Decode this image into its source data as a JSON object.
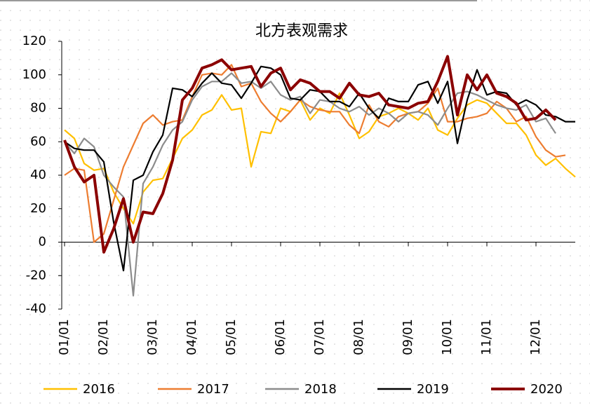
{
  "chart_data": {
    "type": "line",
    "title": "北方表观需求",
    "categories": [
      "01/01",
      null,
      null,
      null,
      "02/01",
      null,
      null,
      null,
      null,
      "03/01",
      null,
      null,
      null,
      "04/01",
      null,
      null,
      null,
      "05/01",
      null,
      null,
      null,
      null,
      "06/01",
      null,
      null,
      null,
      "07/01",
      null,
      null,
      null,
      "08/01",
      null,
      null,
      null,
      null,
      "09/01",
      null,
      null,
      null,
      "10/01",
      null,
      null,
      null,
      "11/01",
      null,
      null,
      null,
      null,
      "12/01",
      null,
      null,
      null,
      null
    ],
    "ylim": [
      -40,
      120
    ],
    "yticks": [
      -40,
      -20,
      0,
      20,
      40,
      60,
      80,
      100,
      120
    ],
    "series": [
      {
        "name": "2016",
        "color": "#ffc000",
        "values": [
          67,
          62,
          47,
          43,
          44,
          30,
          20,
          11,
          30,
          37,
          38,
          50,
          62,
          67,
          76,
          79,
          88,
          79,
          80,
          45,
          66,
          65,
          80,
          78,
          85,
          73,
          80,
          77,
          89,
          76,
          62,
          66,
          75,
          77,
          80,
          77,
          73,
          80,
          67,
          64,
          74,
          82,
          85,
          83,
          77,
          71,
          71,
          64,
          52,
          46,
          50,
          44,
          39
        ]
      },
      {
        "name": "2017",
        "color": "#ed7d31",
        "values": [
          40,
          44,
          43,
          0,
          5,
          25,
          45,
          58,
          71,
          76,
          70,
          72,
          73,
          87,
          100,
          101,
          100,
          106,
          93,
          95,
          84,
          77,
          72,
          78,
          85,
          81,
          79,
          78,
          78,
          70,
          65,
          82,
          72,
          69,
          75,
          77,
          78,
          83,
          92,
          72,
          72,
          74,
          75,
          77,
          84,
          80,
          72,
          75,
          63,
          55,
          51,
          52,
          null
        ]
      },
      {
        "name": "2018",
        "color": "#8c8c8c",
        "values": [
          60,
          53,
          62,
          57,
          40,
          33,
          27,
          -32,
          35,
          45,
          58,
          67,
          72,
          85,
          93,
          96,
          96,
          101,
          95,
          96,
          92,
          96,
          88,
          85,
          87,
          77,
          85,
          84,
          80,
          78,
          81,
          76,
          80,
          77,
          72,
          77,
          78,
          76,
          70,
          80,
          89,
          90,
          88,
          85,
          82,
          80,
          79,
          82,
          72,
          74,
          65,
          null,
          null
        ]
      },
      {
        "name": "2019",
        "color": "#000000",
        "values": [
          60,
          56,
          55,
          55,
          48,
          12,
          -17,
          37,
          40,
          54,
          64,
          92,
          91,
          87,
          95,
          101,
          95,
          94,
          86,
          95,
          105,
          104,
          100,
          86,
          85,
          91,
          90,
          84,
          84,
          81,
          89,
          80,
          74,
          86,
          84,
          84,
          94,
          96,
          83,
          96,
          59,
          85,
          103,
          88,
          90,
          89,
          82,
          85,
          82,
          76,
          75,
          72,
          72
        ]
      },
      {
        "name": "2020",
        "color": "#8b0000",
        "values": [
          61,
          45,
          36,
          40,
          -6,
          8,
          26,
          0,
          18,
          17,
          29,
          49,
          85,
          92,
          104,
          106,
          109,
          103,
          104,
          105,
          93,
          101,
          104,
          91,
          97,
          95,
          90,
          90,
          86,
          95,
          88,
          87,
          89,
          82,
          81,
          80,
          83,
          84,
          96,
          111,
          76,
          100,
          91,
          100,
          89,
          87,
          83,
          73,
          74,
          79,
          73,
          null,
          null
        ]
      }
    ]
  }
}
